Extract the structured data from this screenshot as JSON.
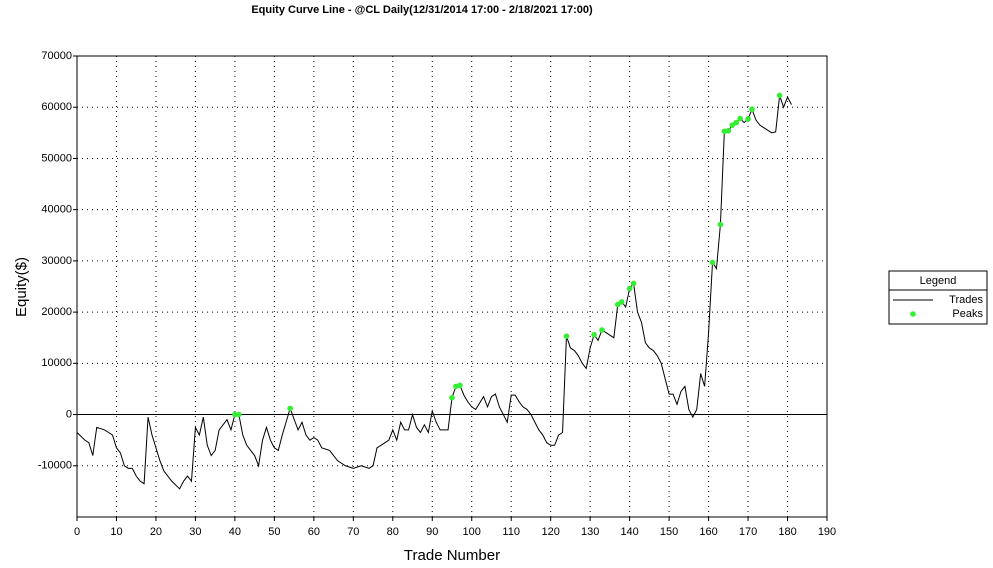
{
  "chart_data": {
    "type": "line",
    "title": "Equity Curve Line - @CL Daily(12/31/2014 17:00 - 2/18/2021 17:00)",
    "x_label": "Trade Number",
    "y_label": "Equity($)",
    "legend_title": "Legend",
    "legend": "right",
    "grid": true,
    "zero_line": true,
    "xlim": [
      0,
      190
    ],
    "xticks": [
      0,
      10,
      20,
      30,
      40,
      50,
      60,
      70,
      80,
      90,
      100,
      110,
      120,
      130,
      140,
      150,
      160,
      170,
      180,
      190
    ],
    "ylim": [
      -20000,
      70000
    ],
    "yticks": [
      -10000,
      0,
      10000,
      20000,
      30000,
      40000,
      50000,
      60000,
      70000
    ],
    "series": [
      {
        "name": "Trades",
        "mode": "line",
        "color": "#000000",
        "x": [
          0,
          2,
          3,
          4,
          5,
          7,
          8,
          9,
          10,
          11,
          12,
          13,
          14,
          15,
          16,
          17,
          18,
          19,
          20,
          21,
          22,
          23,
          24,
          26,
          27,
          28,
          29,
          30,
          31,
          32,
          33,
          34,
          35,
          36,
          37,
          38,
          39,
          40,
          41,
          42,
          43,
          44,
          45,
          46,
          47,
          48,
          49,
          50,
          51,
          52,
          54,
          56,
          57,
          58,
          59,
          60,
          61,
          62,
          64,
          66,
          68,
          70,
          72,
          74,
          75,
          76,
          77,
          79,
          80,
          81,
          82,
          83,
          84,
          85,
          86,
          87,
          88,
          89,
          90,
          91,
          92,
          94,
          95,
          96,
          97,
          98,
          99,
          100,
          101,
          103,
          104,
          105,
          106,
          107,
          108,
          109,
          110,
          111,
          112,
          113,
          114,
          115,
          116,
          117,
          118,
          119,
          120,
          121,
          122,
          123,
          124,
          125,
          126,
          127,
          128,
          129,
          130,
          131,
          132,
          133,
          134,
          135,
          136,
          137,
          138,
          139,
          140,
          141,
          142,
          143,
          144,
          145,
          146,
          147,
          148,
          149,
          150,
          151,
          152,
          153,
          154,
          155,
          156,
          157,
          158,
          159,
          160,
          161,
          162,
          163,
          164,
          165,
          166,
          167,
          168,
          169,
          170,
          171,
          172,
          173,
          174,
          175,
          176,
          177,
          178,
          179,
          180,
          181
        ],
        "values": [
          -3500,
          -5000,
          -5500,
          -8000,
          -2500,
          -3000,
          -3500,
          -4000,
          -6500,
          -7500,
          -10000,
          -10500,
          -10500,
          -12000,
          -13000,
          -13500,
          -500,
          -4000,
          -6500,
          -9000,
          -11000,
          -12000,
          -13000,
          -14500,
          -13000,
          -12000,
          -13000,
          -2500,
          -4000,
          -500,
          -6000,
          -8000,
          -7000,
          -3000,
          -2000,
          -1000,
          -3000,
          0,
          0,
          -4000,
          -6000,
          -7000,
          -8000,
          -10000,
          -5000,
          -2500,
          -5000,
          -6500,
          -7000,
          -4000,
          1200,
          -3000,
          -1500,
          -4000,
          -5000,
          -4500,
          -5000,
          -6500,
          -7000,
          -9000,
          -10000,
          -10500,
          -10000,
          -10500,
          -10000,
          -6500,
          -6000,
          -5000,
          -3000,
          -5000,
          -1500,
          -3000,
          -3000,
          0,
          -2500,
          -3500,
          -2000,
          -3500,
          700,
          -1500,
          -3000,
          -3000,
          3300,
          5500,
          5700,
          3800,
          2500,
          1500,
          1000,
          3500,
          1500,
          3500,
          4000,
          1500,
          0,
          -1500,
          3800,
          3800,
          2500,
          1500,
          1000,
          0,
          -1500,
          -3000,
          -4000,
          -5500,
          -6000,
          -6000,
          -4000,
          -3500,
          15300,
          13000,
          12500,
          11500,
          10000,
          9000,
          13000,
          15600,
          14500,
          16500,
          16000,
          15500,
          15000,
          21500,
          22000,
          21000,
          24600,
          25600,
          20000,
          18000,
          14000,
          13000,
          12500,
          11500,
          10000,
          7000,
          4000,
          4000,
          2000,
          4500,
          5500,
          1000,
          -500,
          1000,
          8000,
          5500,
          16000,
          29700,
          28500,
          37100,
          55300,
          55400,
          56500,
          57000,
          57800,
          57000,
          57700,
          59600,
          57500,
          56500,
          56000,
          55500,
          55000,
          55200,
          62300,
          60000,
          62000,
          60500
        ]
      },
      {
        "name": "Peaks",
        "mode": "markers",
        "color": "#33ee33",
        "x": [
          40,
          41,
          54,
          95,
          96,
          97,
          124,
          131,
          133,
          137,
          138,
          140,
          141,
          161,
          163,
          164,
          165,
          166,
          167,
          168,
          170,
          171,
          178
        ],
        "values": [
          0,
          0,
          1200,
          3300,
          5500,
          5700,
          15300,
          15600,
          16500,
          21500,
          22000,
          24600,
          25600,
          29700,
          37100,
          55300,
          55400,
          56500,
          57000,
          57800,
          57700,
          59600,
          62300
        ]
      }
    ]
  }
}
